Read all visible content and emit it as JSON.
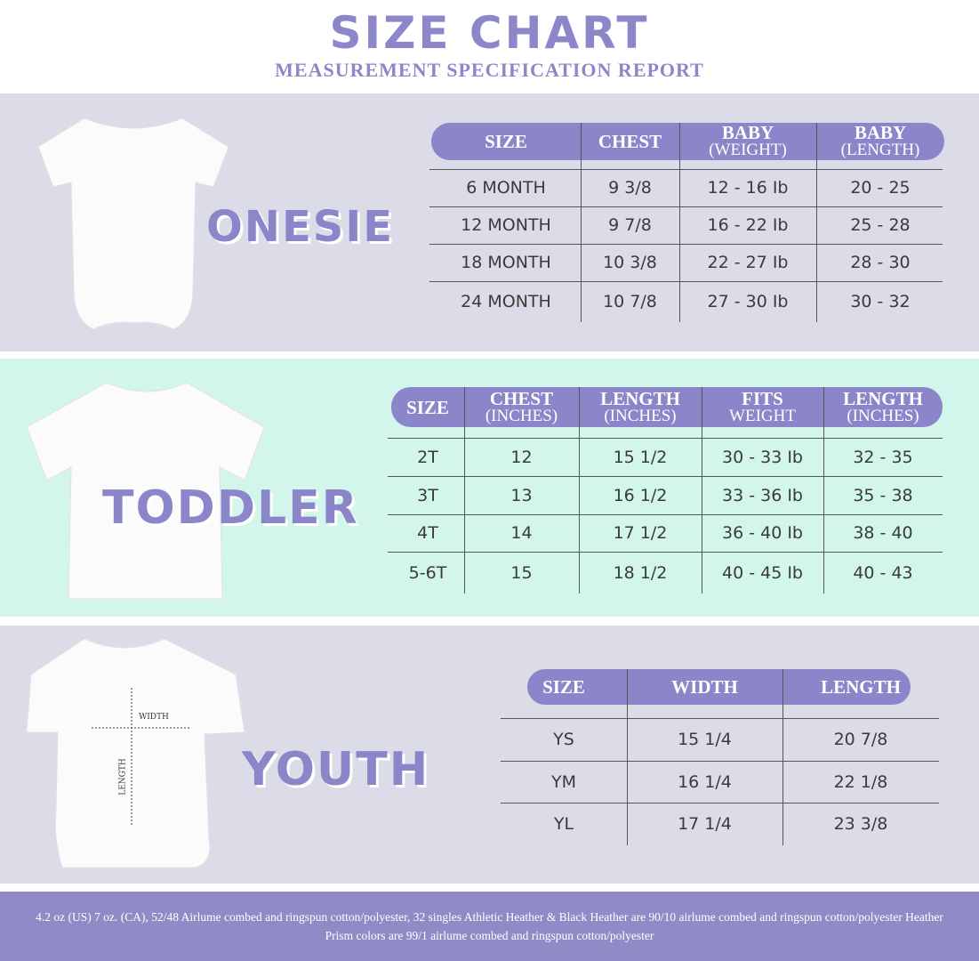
{
  "header": {
    "title": "SIZE CHART",
    "subtitle": "MEASUREMENT SPECIFICATION REPORT"
  },
  "colors": {
    "accent": "#8b85c9",
    "onesie_bg": "#dcdce8",
    "toddler_bg": "#d3f6ec",
    "youth_bg": "#dcdce8",
    "footer_bg": "#8e8bc6"
  },
  "onesie": {
    "label": "ONESIE",
    "headers": [
      {
        "main": "SIZE",
        "sub": ""
      },
      {
        "main": "CHEST",
        "sub": ""
      },
      {
        "main": "BABY",
        "sub": "(WEIGHT)"
      },
      {
        "main": "BABY",
        "sub": "(LENGTH)"
      }
    ],
    "rows": [
      [
        "6 MONTH",
        "9 3/8",
        "12 - 16 Ib",
        "20 - 25"
      ],
      [
        "12 MONTH",
        "9 7/8",
        "16 - 22 Ib",
        "25 - 28"
      ],
      [
        "18  MONTH",
        "10 3/8",
        "22 - 27 Ib",
        "28 - 30"
      ],
      [
        "24 MONTH",
        "10 7/8",
        "27 - 30 Ib",
        "30 - 32"
      ]
    ]
  },
  "toddler": {
    "label": "TODDLER",
    "headers": [
      {
        "main": "SIZE",
        "sub": ""
      },
      {
        "main": "CHEST",
        "sub": "(INCHES)"
      },
      {
        "main": "LENGTH",
        "sub": "(INCHES)"
      },
      {
        "main": "FITS",
        "sub": "WEIGHT"
      },
      {
        "main": "LENGTH",
        "sub": "(INCHES)"
      }
    ],
    "rows": [
      [
        "2T",
        "12",
        "15 1/2",
        "30 - 33 Ib",
        "32 - 35"
      ],
      [
        "3T",
        "13",
        "16 1/2",
        "33 - 36 Ib",
        "35 - 38"
      ],
      [
        "4T",
        "14",
        "17 1/2",
        "36 - 40 Ib",
        "38 - 40"
      ],
      [
        "5-6T",
        "15",
        "18 1/2",
        "40 - 45 Ib",
        "40 - 43"
      ]
    ]
  },
  "youth": {
    "label": "YOUTH",
    "diagram": {
      "width_label": "WIDTH",
      "length_label": "LENGTH"
    },
    "headers": [
      {
        "main": "SIZE",
        "sub": ""
      },
      {
        "main": "WIDTH",
        "sub": ""
      },
      {
        "main": "LENGTH",
        "sub": ""
      }
    ],
    "rows": [
      [
        "YS",
        "15 1/4",
        "20 7/8"
      ],
      [
        "YM",
        "16 1/4",
        "22 1/8"
      ],
      [
        "YL",
        "17 1/4",
        "23 3/8"
      ]
    ]
  },
  "footer": {
    "text": "4.2 oz (US) 7 oz. (CA), 52/48 Airlume combed and ringspun cotton/polyester, 32 singles Athletic Heather & Black Heather are 90/10 airlume combed and ringspun cotton/polyester Heather Prism colors are 99/1 airlume combed and ringspun cotton/polyester"
  }
}
